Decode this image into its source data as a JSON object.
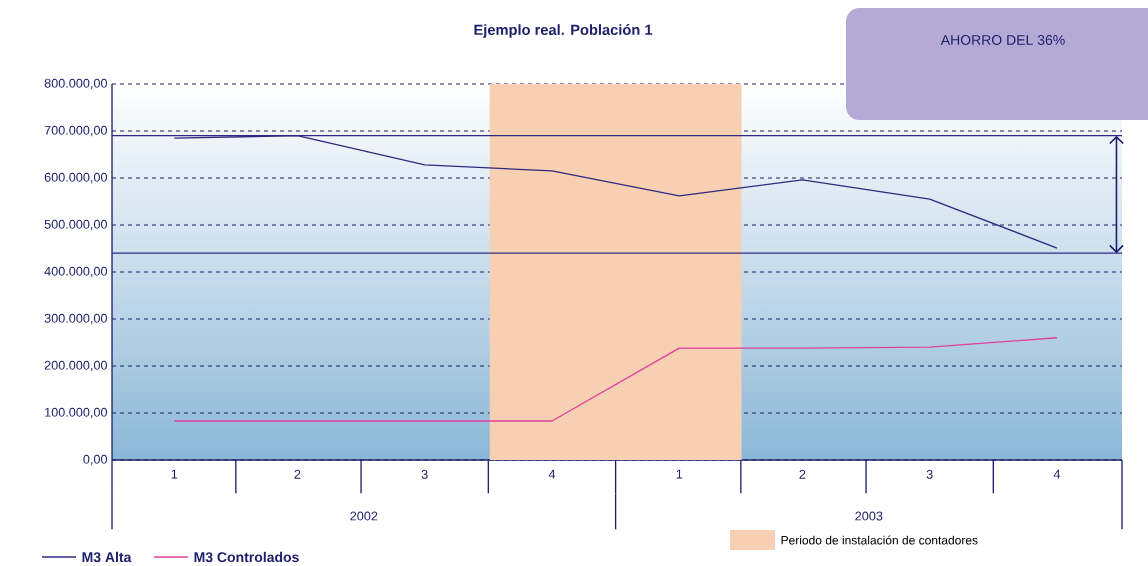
{
  "chart_data": {
    "type": "line",
    "title": "Ejemplo real. Población 1",
    "x": [
      "2002-02-15",
      "2002-05-15",
      "2002-08-15",
      "2002-11-15",
      "2003-02-15",
      "2003-05-15",
      "2003-08-15",
      "2003-11-15"
    ],
    "series": [
      {
        "name": "M3 Alta",
        "color": "#2e2a7f",
        "values": [
          685000,
          690000,
          628000,
          615000,
          562000,
          596000,
          555000,
          451000
        ]
      },
      {
        "name": "M3 Controlados",
        "color": "#e0409c",
        "values": [
          83000,
          83000,
          83000,
          83000,
          238000,
          238000,
          240000,
          260000
        ]
      }
    ],
    "xlim": [
      "2002-01-01",
      "2004-01-01"
    ],
    "xticks": [
      {
        "value": "2002-02-15",
        "label": "1"
      },
      {
        "value": "2002-05-15",
        "label": "2"
      },
      {
        "value": "2002-08-15",
        "label": "3"
      },
      {
        "value": "2002-11-15",
        "label": "4"
      },
      {
        "value": "2003-02-15",
        "label": "1"
      },
      {
        "value": "2003-05-15",
        "label": "2"
      },
      {
        "value": "2003-08-15",
        "label": "3"
      },
      {
        "value": "2003-11-15",
        "label": "4"
      }
    ],
    "ylim": [
      0,
      800000
    ],
    "yticks": [
      {
        "value": 0,
        "label": "0,00"
      },
      {
        "value": 100000,
        "label": "100.000,00"
      },
      {
        "value": 200000,
        "label": "200.000,00"
      },
      {
        "value": 300000,
        "label": "300.000,00"
      },
      {
        "value": 400000,
        "label": "400.000,00"
      },
      {
        "value": 500000,
        "label": "500.000,00"
      },
      {
        "value": 600000,
        "label": "600.000,00"
      },
      {
        "value": 700000,
        "label": "700.000,00"
      },
      {
        "value": 800000,
        "label": "800.000,00"
      }
    ],
    "ref_lines": [
      {
        "axis": "y",
        "value": 690000,
        "color": "#2e2a7f"
      },
      {
        "axis": "y",
        "value": 440000,
        "color": "#2e2a7f"
      }
    ],
    "bands": [
      {
        "axis": "x",
        "from": "2002-10-01",
        "to": "2003-04-01",
        "label": "Periodo de instalación de  contadores",
        "color": "#f7cfb2"
      }
    ],
    "annotations": [
      "AHORRO DEL 36%",
      "2002",
      "2003"
    ],
    "grid": "y",
    "legend": "bottom",
    "marker": "none"
  }
}
